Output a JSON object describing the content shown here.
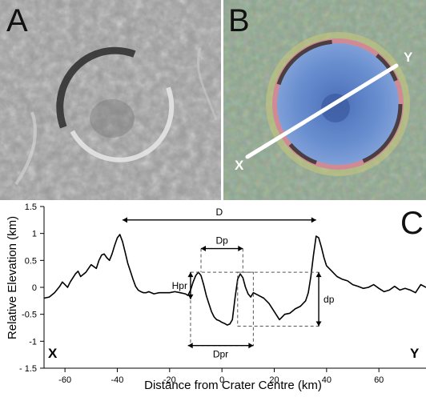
{
  "panels": {
    "a": {
      "letter": "A"
    },
    "b": {
      "letter": "B",
      "endpoints": {
        "start": "X",
        "end": "Y"
      }
    },
    "c": {
      "letter": "C"
    }
  },
  "chart_data": {
    "type": "line",
    "xlabel": "Distance from Crater Centre (km)",
    "ylabel": "Relative Elevation (km)",
    "xlim": [
      -68,
      78
    ],
    "ylim": [
      -1.5,
      1.5
    ],
    "x_ticks": [
      -60,
      -40,
      -20,
      0,
      20,
      40,
      60
    ],
    "y_ticks": [
      -1.5,
      -1,
      -0.5,
      0,
      0.5,
      1,
      1.5
    ],
    "y_tick_labels": [
      "- 1.5",
      "-1",
      "-0.5",
      "0",
      "0.5",
      "1",
      "1.5"
    ],
    "grid": false,
    "endpoint_labels": {
      "left": "X",
      "right": "Y"
    },
    "series": [
      {
        "x": [
          -68,
          -66,
          -64,
          -62,
          -61,
          -60,
          -59,
          -58,
          -56,
          -55,
          -54,
          -52,
          -51,
          -50,
          -48,
          -47,
          -46,
          -45,
          -44,
          -43,
          -42,
          -41,
          -40,
          -39,
          -38,
          -37,
          -36,
          -35,
          -34,
          -33,
          -32,
          -31,
          -30,
          -29,
          -28,
          -26,
          -24,
          -22,
          -20,
          -18,
          -16,
          -14,
          -13,
          -12,
          -11,
          -10,
          -9,
          -8,
          -7,
          -6,
          -5,
          -4,
          -3,
          -2,
          -1,
          0,
          1,
          2,
          3,
          4,
          5,
          6,
          7,
          8,
          9,
          10,
          11,
          12,
          14,
          16,
          18,
          20,
          22,
          24,
          26,
          28,
          30,
          32,
          33,
          34,
          35,
          36,
          37,
          38,
          39,
          40,
          41,
          42,
          44,
          46,
          48,
          50,
          52,
          54,
          56,
          58,
          60,
          62,
          64,
          66,
          68,
          70,
          72,
          74,
          76,
          78
        ],
        "y": [
          -0.2,
          -0.18,
          -0.1,
          0.02,
          0.1,
          0.05,
          0.0,
          0.1,
          0.25,
          0.3,
          0.2,
          0.28,
          0.35,
          0.42,
          0.35,
          0.5,
          0.6,
          0.62,
          0.55,
          0.5,
          0.62,
          0.78,
          0.92,
          0.98,
          0.85,
          0.65,
          0.45,
          0.3,
          0.15,
          0.02,
          -0.05,
          -0.08,
          -0.1,
          -0.1,
          -0.08,
          -0.12,
          -0.1,
          -0.1,
          -0.1,
          -0.08,
          -0.1,
          -0.12,
          -0.15,
          -0.05,
          0.1,
          0.22,
          0.28,
          0.22,
          0.05,
          -0.15,
          -0.3,
          -0.45,
          -0.55,
          -0.6,
          -0.62,
          -0.65,
          -0.67,
          -0.7,
          -0.68,
          -0.6,
          -0.2,
          0.15,
          0.25,
          0.18,
          0.0,
          -0.12,
          -0.18,
          -0.1,
          -0.15,
          -0.2,
          -0.3,
          -0.45,
          -0.6,
          -0.5,
          -0.48,
          -0.4,
          -0.35,
          -0.25,
          -0.1,
          0.2,
          0.6,
          0.95,
          0.92,
          0.75,
          0.55,
          0.4,
          0.35,
          0.3,
          0.2,
          0.15,
          0.12,
          0.05,
          0.02,
          -0.02,
          0.0,
          0.05,
          -0.02,
          -0.08,
          -0.05,
          0.02,
          -0.05,
          -0.02,
          -0.05,
          -0.1,
          0.05,
          0.0
        ]
      }
    ],
    "annotations": [
      {
        "label": "D",
        "kind": "arrow-horizontal",
        "from": [
          -38,
          1.25
        ],
        "to": [
          36,
          1.25
        ]
      },
      {
        "label": "Dp",
        "kind": "arrow-horizontal",
        "from": [
          -8,
          0.72
        ],
        "to": [
          8,
          0.72
        ]
      },
      {
        "label": "Hpr",
        "kind": "arrow-vertical",
        "from": [
          -12,
          -0.22
        ],
        "to": [
          -12,
          0.28
        ]
      },
      {
        "label": "dp",
        "kind": "arrow-vertical",
        "from": [
          37,
          -0.72
        ],
        "to": [
          37,
          0.28
        ]
      },
      {
        "label": "Dpr",
        "kind": "arrow-horizontal",
        "from": [
          -13,
          -1.08
        ],
        "to": [
          12,
          -1.08
        ]
      }
    ]
  }
}
